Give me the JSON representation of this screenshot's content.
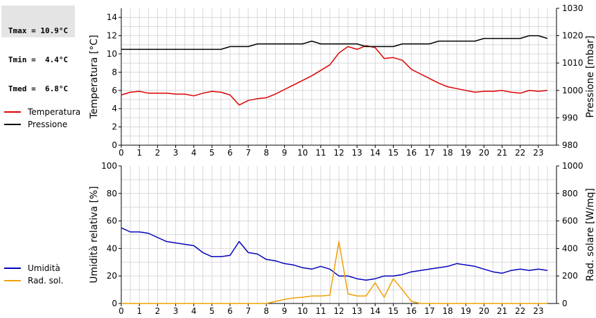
{
  "stats": {
    "tmax": "Tmax = 10.9°C",
    "tmin": "Tmin =  4.4°C",
    "tmed": "Tmed =  6.8°C"
  },
  "colors": {
    "temperature": "#dd0000",
    "pressure": "#000000",
    "humidity": "#0000bb",
    "radiation": "#f0a000",
    "grid": "#d8d8d8"
  },
  "chart_data": [
    {
      "type": "line",
      "xlim": [
        0,
        24
      ],
      "xticks": [
        0,
        1,
        2,
        3,
        4,
        5,
        6,
        7,
        8,
        9,
        10,
        11,
        12,
        13,
        14,
        15,
        16,
        17,
        18,
        19,
        20,
        21,
        22,
        23
      ],
      "ylabel": "Temperatura [°C]",
      "ylim": [
        0,
        15
      ],
      "yticks": [
        0,
        2,
        4,
        6,
        8,
        10,
        12,
        14
      ],
      "y2label": "Pressione [mbar]",
      "y2lim": [
        980,
        1030
      ],
      "y2ticks": [
        980,
        990,
        1000,
        1010,
        1020,
        1030
      ],
      "grid": true,
      "legend_position": "left",
      "series": [
        {
          "name": "Temperatura",
          "axis": "left",
          "x": [
            0,
            0.5,
            1,
            1.5,
            2,
            2.5,
            3,
            3.5,
            4,
            4.5,
            5,
            5.5,
            6,
            6.5,
            7,
            7.5,
            8,
            8.5,
            9,
            9.5,
            10,
            10.5,
            11,
            11.5,
            12,
            12.5,
            13,
            13.5,
            14,
            14.5,
            15,
            15.5,
            16,
            16.5,
            17,
            17.5,
            18,
            18.5,
            19,
            19.5,
            20,
            20.5,
            21,
            21.5,
            22,
            22.5,
            23,
            23.5
          ],
          "values": [
            5.5,
            5.8,
            5.9,
            5.7,
            5.7,
            5.7,
            5.6,
            5.6,
            5.4,
            5.7,
            5.9,
            5.8,
            5.5,
            4.4,
            4.9,
            5.1,
            5.2,
            5.6,
            6.1,
            6.6,
            7.1,
            7.6,
            8.2,
            8.8,
            10.1,
            10.8,
            10.5,
            10.9,
            10.7,
            9.5,
            9.6,
            9.3,
            8.3,
            7.8,
            7.3,
            6.8,
            6.4,
            6.2,
            6.0,
            5.8,
            5.9,
            5.9,
            6.0,
            5.8,
            5.7,
            6.0,
            5.9,
            6.0
          ]
        },
        {
          "name": "Pressione",
          "axis": "right",
          "x": [
            0,
            0.5,
            1,
            1.5,
            2,
            2.5,
            3,
            3.5,
            4,
            4.5,
            5,
            5.5,
            6,
            6.5,
            7,
            7.5,
            8,
            8.5,
            9,
            9.5,
            10,
            10.5,
            11,
            11.5,
            12,
            12.5,
            13,
            13.5,
            14,
            14.5,
            15,
            15.5,
            16,
            16.5,
            17,
            17.5,
            18,
            18.5,
            19,
            19.5,
            20,
            20.5,
            21,
            21.5,
            22,
            22.5,
            23,
            23.5
          ],
          "values": [
            1015,
            1015,
            1015,
            1015,
            1015,
            1015,
            1015,
            1015,
            1015,
            1015,
            1015,
            1015,
            1016,
            1016,
            1016,
            1017,
            1017,
            1017,
            1017,
            1017,
            1017,
            1018,
            1017,
            1017,
            1017,
            1017,
            1017,
            1016,
            1016,
            1016,
            1016,
            1017,
            1017,
            1017,
            1017,
            1018,
            1018,
            1018,
            1018,
            1018,
            1019,
            1019,
            1019,
            1019,
            1019,
            1020,
            1020,
            1019
          ]
        }
      ]
    },
    {
      "type": "line",
      "xlim": [
        0,
        24
      ],
      "xticks": [
        0,
        1,
        2,
        3,
        4,
        5,
        6,
        7,
        8,
        9,
        10,
        11,
        12,
        13,
        14,
        15,
        16,
        17,
        18,
        19,
        20,
        21,
        22,
        23
      ],
      "ylabel": "Umidità relativa [%]",
      "ylim": [
        0,
        100
      ],
      "yticks": [
        0,
        20,
        40,
        60,
        80,
        100
      ],
      "y2label": "Rad. solare [W/mq]",
      "y2lim": [
        0,
        1000
      ],
      "y2ticks": [
        0,
        200,
        400,
        600,
        800,
        1000
      ],
      "grid": true,
      "legend_position": "left",
      "series": [
        {
          "name": "Umidità",
          "axis": "left",
          "x": [
            0,
            0.5,
            1,
            1.5,
            2,
            2.5,
            3,
            3.5,
            4,
            4.5,
            5,
            5.5,
            6,
            6.5,
            7,
            7.5,
            8,
            8.5,
            9,
            9.5,
            10,
            10.5,
            11,
            11.5,
            12,
            12.5,
            13,
            13.5,
            14,
            14.5,
            15,
            15.5,
            16,
            16.5,
            17,
            17.5,
            18,
            18.5,
            19,
            19.5,
            20,
            20.5,
            21,
            21.5,
            22,
            22.5,
            23,
            23.5
          ],
          "values": [
            55,
            52,
            52,
            51,
            48,
            45,
            44,
            43,
            42,
            37,
            34,
            34,
            35,
            45,
            37,
            36,
            32,
            31,
            29,
            28,
            26,
            25,
            27,
            25,
            20,
            20,
            18,
            17,
            18,
            20,
            20,
            21,
            23,
            24,
            25,
            26,
            27,
            29,
            28,
            27,
            25,
            23,
            22,
            24,
            25,
            24,
            25,
            24
          ]
        },
        {
          "name": "Rad. sol.",
          "axis": "right",
          "x": [
            0,
            0.5,
            1,
            1.5,
            2,
            2.5,
            3,
            3.5,
            4,
            4.5,
            5,
            5.5,
            6,
            6.5,
            7,
            7.5,
            8,
            8.5,
            9,
            9.5,
            10,
            10.5,
            11,
            11.5,
            12,
            12.5,
            13,
            13.5,
            14,
            14.5,
            15,
            15.5,
            16,
            16.5,
            17,
            17.5,
            18,
            18.5,
            19,
            19.5,
            20,
            20.5,
            21,
            21.5,
            22,
            22.5,
            23,
            23.5
          ],
          "values": [
            0,
            0,
            0,
            0,
            0,
            0,
            0,
            0,
            0,
            0,
            0,
            0,
            0,
            0,
            0,
            0,
            0,
            15,
            30,
            40,
            45,
            55,
            55,
            60,
            450,
            70,
            55,
            55,
            150,
            45,
            180,
            100,
            15,
            0,
            0,
            0,
            0,
            0,
            0,
            0,
            0,
            0,
            0,
            0,
            0,
            0,
            0,
            0
          ]
        }
      ]
    }
  ]
}
